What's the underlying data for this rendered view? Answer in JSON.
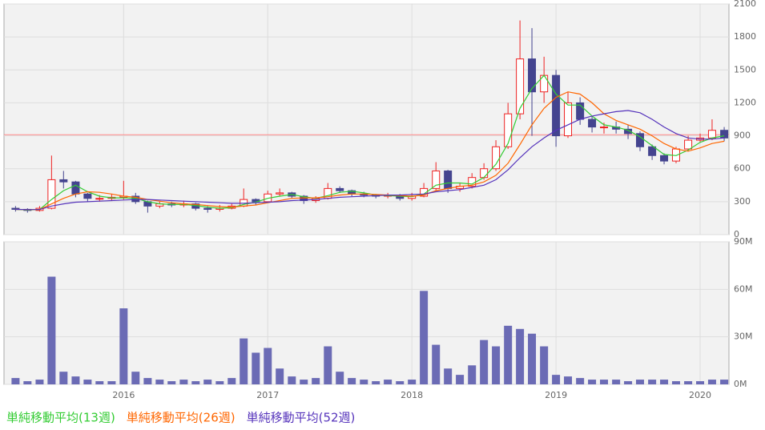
{
  "chart_data": {
    "type": "candlestick",
    "x": [
      2015.25,
      2015.333,
      2015.417,
      2015.5,
      2015.583,
      2015.667,
      2015.75,
      2015.833,
      2015.917,
      2016.0,
      2016.083,
      2016.167,
      2016.25,
      2016.333,
      2016.417,
      2016.5,
      2016.583,
      2016.667,
      2016.75,
      2016.833,
      2016.917,
      2017.0,
      2017.083,
      2017.167,
      2017.25,
      2017.333,
      2017.417,
      2017.5,
      2017.583,
      2017.667,
      2017.75,
      2017.833,
      2017.917,
      2018.0,
      2018.083,
      2018.167,
      2018.25,
      2018.333,
      2018.417,
      2018.5,
      2018.583,
      2018.667,
      2018.75,
      2018.833,
      2018.917,
      2019.0,
      2019.083,
      2019.167,
      2019.25,
      2019.333,
      2019.417,
      2019.5,
      2019.583,
      2019.667,
      2019.75,
      2019.833,
      2019.917,
      2020.0,
      2020.083,
      2020.167
    ],
    "open": [
      240,
      230,
      220,
      240,
      500,
      480,
      370,
      330,
      330,
      340,
      350,
      300,
      260,
      280,
      270,
      280,
      240,
      230,
      240,
      260,
      320,
      300,
      370,
      380,
      350,
      310,
      330,
      420,
      400,
      370,
      360,
      350,
      360,
      330,
      350,
      420,
      580,
      420,
      440,
      520,
      600,
      800,
      1100,
      1600,
      1300,
      1450,
      900,
      1200,
      1050,
      980,
      980,
      960,
      920,
      800,
      720,
      670,
      780,
      860,
      880,
      950
    ],
    "high": [
      260,
      240,
      260,
      720,
      580,
      490,
      380,
      360,
      370,
      490,
      380,
      310,
      300,
      300,
      310,
      290,
      260,
      270,
      280,
      420,
      330,
      400,
      420,
      390,
      360,
      350,
      470,
      440,
      410,
      390,
      370,
      380,
      370,
      380,
      470,
      660,
      590,
      470,
      560,
      650,
      860,
      1200,
      1950,
      1880,
      1620,
      1500,
      1300,
      1250,
      1080,
      1020,
      1030,
      1000,
      940,
      820,
      740,
      800,
      900,
      920,
      1050,
      980
    ],
    "low": [
      210,
      200,
      210,
      230,
      420,
      340,
      300,
      300,
      310,
      320,
      280,
      200,
      240,
      250,
      250,
      220,
      200,
      210,
      230,
      250,
      270,
      290,
      350,
      330,
      280,
      290,
      320,
      380,
      350,
      340,
      330,
      330,
      310,
      310,
      340,
      400,
      380,
      390,
      420,
      500,
      580,
      780,
      1050,
      900,
      1200,
      800,
      880,
      1000,
      930,
      920,
      920,
      870,
      760,
      680,
      640,
      650,
      760,
      840,
      860,
      850
    ],
    "close": [
      230,
      220,
      240,
      500,
      480,
      370,
      330,
      330,
      340,
      350,
      300,
      260,
      280,
      270,
      280,
      240,
      230,
      240,
      260,
      320,
      300,
      370,
      380,
      350,
      310,
      330,
      420,
      400,
      370,
      360,
      350,
      360,
      330,
      350,
      420,
      580,
      420,
      440,
      520,
      600,
      800,
      1100,
      1600,
      1300,
      1450,
      900,
      1200,
      1050,
      980,
      980,
      960,
      920,
      800,
      720,
      670,
      780,
      860,
      880,
      950,
      880
    ],
    "up_color": "#ee2222",
    "down_color": "#44448f",
    "series": [
      {
        "name": "単純移動平均(13週)",
        "color": "#33cc33",
        "values": [
          230,
          225,
          228,
          320,
          400,
          450,
          390,
          350,
          335,
          335,
          330,
          300,
          280,
          275,
          275,
          265,
          250,
          240,
          245,
          275,
          295,
          330,
          350,
          365,
          345,
          330,
          355,
          385,
          395,
          380,
          360,
          355,
          350,
          345,
          370,
          450,
          470,
          470,
          460,
          520,
          640,
          830,
          1150,
          1330,
          1450,
          1280,
          1180,
          1180,
          1080,
          1000,
          980,
          950,
          890,
          810,
          730,
          720,
          770,
          840,
          880,
          900
        ]
      },
      {
        "name": "単純移動平均(26週)",
        "color": "#ff6600",
        "values": [
          230,
          228,
          228,
          280,
          330,
          370,
          390,
          385,
          370,
          350,
          340,
          320,
          305,
          290,
          280,
          275,
          265,
          255,
          250,
          260,
          270,
          290,
          310,
          330,
          335,
          335,
          345,
          360,
          370,
          370,
          365,
          360,
          355,
          350,
          360,
          400,
          420,
          440,
          450,
          480,
          540,
          650,
          820,
          1000,
          1150,
          1250,
          1300,
          1280,
          1200,
          1100,
          1040,
          1000,
          960,
          900,
          830,
          780,
          760,
          790,
          830,
          850
        ]
      },
      {
        "name": "単純移動平均(52週)",
        "color": "#5533bb",
        "values": [
          230,
          228,
          228,
          260,
          280,
          295,
          300,
          305,
          310,
          315,
          320,
          320,
          315,
          310,
          305,
          300,
          295,
          290,
          285,
          285,
          290,
          295,
          300,
          310,
          315,
          320,
          330,
          340,
          345,
          350,
          355,
          360,
          360,
          365,
          370,
          390,
          400,
          410,
          430,
          450,
          500,
          590,
          700,
          800,
          880,
          950,
          1000,
          1050,
          1080,
          1100,
          1120,
          1130,
          1110,
          1050,
          980,
          920,
          880,
          870,
          870,
          880
        ]
      }
    ],
    "xlim": [
      2015.17,
      2020.2
    ],
    "xticks": [
      2016,
      2017,
      2018,
      2019,
      2020
    ],
    "ylim": [
      0,
      2100
    ],
    "yticks": [
      0,
      300,
      600,
      900,
      1200,
      1500,
      1800,
      2100
    ],
    "grid": true,
    "hline": {
      "value": 910,
      "color": "#ff8888"
    },
    "volume": {
      "type": "bar",
      "color": "#6b6bb5",
      "values": [
        4,
        2,
        3,
        68,
        8,
        5,
        3,
        2,
        2,
        48,
        8,
        4,
        3,
        2,
        3,
        2,
        3,
        2,
        4,
        29,
        20,
        23,
        10,
        5,
        3,
        4,
        24,
        8,
        4,
        3,
        2,
        3,
        2,
        3,
        59,
        25,
        10,
        6,
        12,
        28,
        24,
        37,
        35,
        32,
        24,
        6,
        5,
        4,
        3,
        3,
        3,
        2,
        3,
        3,
        3,
        2,
        2,
        2,
        3,
        3
      ],
      "ylim": [
        0,
        90
      ],
      "yticks": [
        {
          "value": 0,
          "label": "0M"
        },
        {
          "value": 30,
          "label": "30M"
        },
        {
          "value": 60,
          "label": "60M"
        },
        {
          "value": 90,
          "label": "90M"
        }
      ]
    }
  }
}
